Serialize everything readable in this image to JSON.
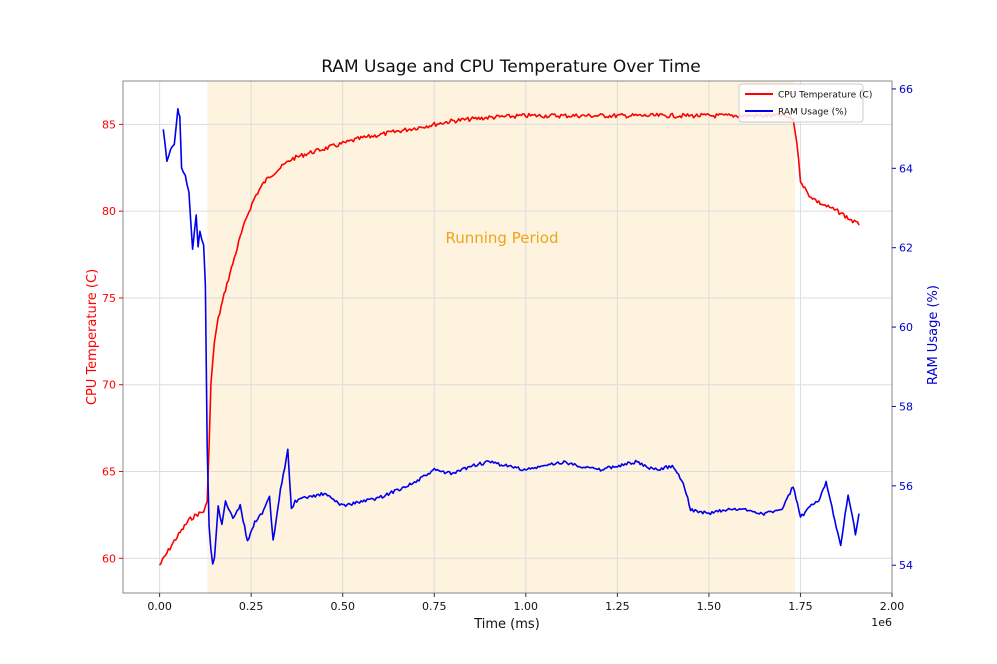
{
  "chart_data": {
    "type": "line",
    "title": "RAM Usage and CPU Temperature Over Time",
    "xlabel": "Time (ms)",
    "x_offset_label": "1e6",
    "ylabel_left": "CPU Temperature (C)",
    "ylabel_right": "RAM Usage (%)",
    "xlim": [
      -0.1,
      2.0
    ],
    "ylim_left": [
      58,
      87.5
    ],
    "ylim_right": [
      53.3,
      66.2
    ],
    "x_ticks": [
      0.0,
      0.25,
      0.5,
      0.75,
      1.0,
      1.25,
      1.5,
      1.75,
      2.0
    ],
    "x_tick_labels": [
      "0.00",
      "0.25",
      "0.50",
      "0.75",
      "1.00",
      "1.25",
      "1.50",
      "1.75",
      "2.00"
    ],
    "y_left_ticks": [
      60,
      65,
      70,
      75,
      80,
      85
    ],
    "y_left_tick_labels": [
      "60",
      "65",
      "70",
      "75",
      "80",
      "85"
    ],
    "y_right_ticks": [
      54,
      56,
      58,
      60,
      62,
      64,
      66
    ],
    "y_right_tick_labels": [
      "54",
      "56",
      "58",
      "60",
      "62",
      "64",
      "66"
    ],
    "grid": true,
    "legend_position": "top-right",
    "shaded_region": {
      "x_start": 0.13,
      "x_end": 1.735,
      "label": "Running Period",
      "color": "#fdf3df",
      "label_color": "#f0a418"
    },
    "series": [
      {
        "name": "CPU Temperature (C)",
        "axis": "left",
        "color": "#ff0000",
        "x": [
          0.0,
          0.02,
          0.04,
          0.06,
          0.08,
          0.1,
          0.12,
          0.13,
          0.14,
          0.15,
          0.16,
          0.18,
          0.2,
          0.22,
          0.24,
          0.26,
          0.28,
          0.3,
          0.33,
          0.36,
          0.4,
          0.45,
          0.5,
          0.55,
          0.6,
          0.65,
          0.7,
          0.75,
          0.8,
          0.85,
          0.9,
          1.0,
          1.1,
          1.2,
          1.3,
          1.4,
          1.5,
          1.6,
          1.7,
          1.73,
          1.74,
          1.75,
          1.77,
          1.8,
          1.83,
          1.86,
          1.88,
          1.91
        ],
        "y": [
          59.6,
          60.3,
          61.0,
          61.6,
          62.2,
          62.5,
          62.7,
          63.2,
          70.0,
          72.5,
          73.8,
          75.5,
          77.0,
          78.5,
          79.8,
          80.8,
          81.5,
          82.0,
          82.5,
          83.0,
          83.3,
          83.6,
          83.9,
          84.2,
          84.4,
          84.6,
          84.8,
          85.0,
          85.2,
          85.3,
          85.4,
          85.5,
          85.5,
          85.5,
          85.5,
          85.5,
          85.5,
          85.5,
          85.5,
          85.3,
          84.0,
          81.8,
          81.0,
          80.5,
          80.2,
          79.9,
          79.6,
          79.2
        ]
      },
      {
        "name": "RAM Usage (%)",
        "axis": "right",
        "color": "#0000ee",
        "x": [
          0.01,
          0.02,
          0.03,
          0.04,
          0.05,
          0.055,
          0.06,
          0.07,
          0.08,
          0.09,
          0.1,
          0.105,
          0.11,
          0.12,
          0.125,
          0.13,
          0.135,
          0.14,
          0.145,
          0.15,
          0.16,
          0.17,
          0.18,
          0.2,
          0.22,
          0.24,
          0.26,
          0.28,
          0.3,
          0.31,
          0.33,
          0.35,
          0.36,
          0.37,
          0.4,
          0.45,
          0.5,
          0.55,
          0.6,
          0.65,
          0.7,
          0.75,
          0.8,
          0.85,
          0.9,
          0.95,
          1.0,
          1.05,
          1.1,
          1.15,
          1.2,
          1.25,
          1.3,
          1.35,
          1.4,
          1.43,
          1.45,
          1.5,
          1.55,
          1.6,
          1.65,
          1.7,
          1.73,
          1.75,
          1.78,
          1.8,
          1.82,
          1.84,
          1.86,
          1.88,
          1.9,
          1.91
        ],
        "y": [
          65.0,
          64.2,
          64.5,
          64.6,
          65.5,
          65.3,
          64.0,
          63.8,
          63.4,
          62.0,
          62.8,
          62.0,
          62.4,
          62.1,
          61.0,
          57.0,
          55.0,
          54.4,
          54.0,
          54.2,
          55.5,
          55.0,
          55.6,
          55.2,
          55.5,
          54.6,
          55.1,
          55.3,
          55.7,
          54.6,
          55.9,
          56.9,
          55.4,
          55.6,
          55.7,
          55.8,
          55.5,
          55.6,
          55.7,
          55.9,
          56.1,
          56.4,
          56.3,
          56.5,
          56.6,
          56.5,
          56.4,
          56.5,
          56.6,
          56.5,
          56.4,
          56.5,
          56.6,
          56.4,
          56.5,
          56.1,
          55.4,
          55.3,
          55.4,
          55.4,
          55.3,
          55.4,
          56.0,
          55.2,
          55.5,
          55.6,
          56.1,
          55.3,
          54.5,
          55.8,
          54.8,
          55.3
        ]
      }
    ]
  }
}
